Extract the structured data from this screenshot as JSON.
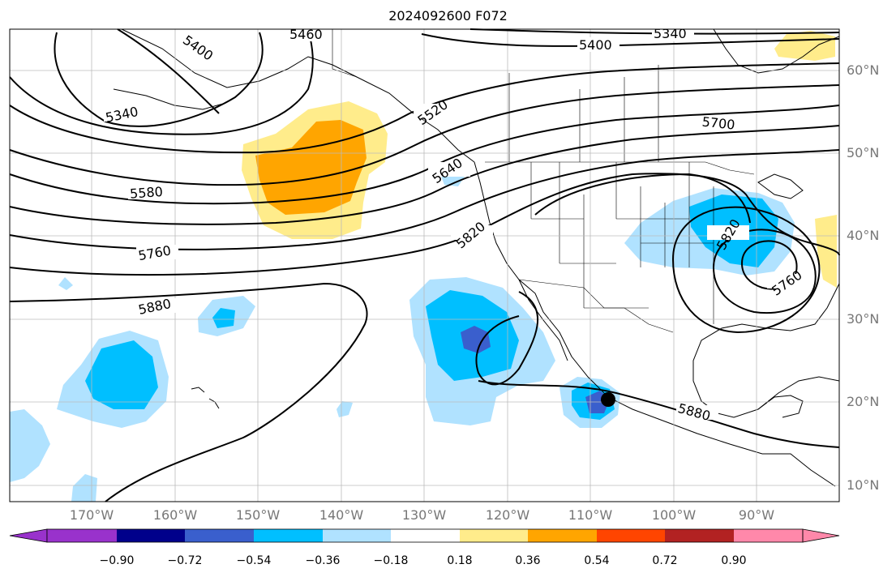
{
  "title": "2024092600 F072",
  "lat_labels": [
    "60°N",
    "50°N",
    "40°N",
    "30°N",
    "20°N",
    "10°N"
  ],
  "lon_labels": [
    "170°W",
    "160°W",
    "150°W",
    "140°W",
    "130°W",
    "120°W",
    "110°W",
    "100°W",
    "90°W"
  ],
  "contour_labels": [
    "5340",
    "5400",
    "5460",
    "5520",
    "5580",
    "5640",
    "5700",
    "5760",
    "5820",
    "5880"
  ],
  "colorbar": {
    "ticks": [
      "−0.90",
      "−0.72",
      "−0.54",
      "−0.36",
      "−0.18",
      "0.18",
      "0.36",
      "0.54",
      "0.72",
      "0.90"
    ],
    "colors": [
      "#9932cc",
      "#00008b",
      "#3a5fcd",
      "#00bfff",
      "#b0e2ff",
      "#ffffff",
      "#ffec8b",
      "#ffa500",
      "#ff4500",
      "#b22222",
      "#ff88aa"
    ]
  },
  "storm_marker": {
    "label": "",
    "color": "#000000"
  }
}
